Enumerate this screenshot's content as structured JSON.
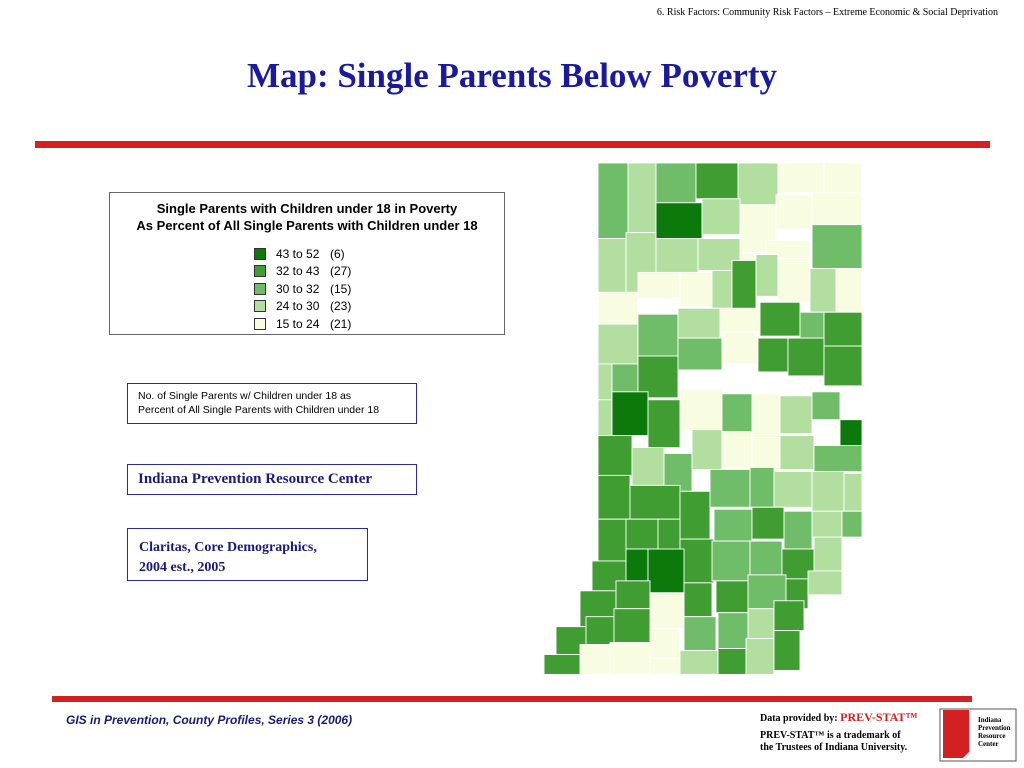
{
  "header_note": "6.  Risk Factors: Community Risk Factors – Extreme Economic & Social Deprivation",
  "title": "Map: Single Parents Below Poverty",
  "legend": {
    "title_line1": "Single Parents with Children  under 18 in Poverty",
    "title_line2": "As Percent of All Single Parents with Children under 18",
    "items": [
      {
        "range": "43 to 52",
        "count": "(6)",
        "color": "#0b7a0b"
      },
      {
        "range": "32 to 43",
        "count": "(27)",
        "color": "#3f9d32"
      },
      {
        "range": "30 to 32",
        "count": "(15)",
        "color": "#6fbd68"
      },
      {
        "range": "24 to 30",
        "count": "(23)",
        "color": "#b2dfa0"
      },
      {
        "range": "15 to 24",
        "count": "(21)",
        "color": "#f8fce0"
      }
    ]
  },
  "description": {
    "line1": "No. of Single Parents w/ Children under 18 as",
    "line2": "Percent of All Single Parents with Children under  18"
  },
  "center_name": "Indiana Prevention Resource Center",
  "source": {
    "line1": "Claritas, Core Demographics,",
    "line2": "2004 est., 2005"
  },
  "footer": {
    "series": "GIS in Prevention, County Profiles, Series 3 (2006)",
    "data_provided_by": "Data provided by:",
    "brand": "PREV-STAT™",
    "trademark_line1": "PREV-STAT™ is a trademark of",
    "trademark_line2": "the Trustees of Indiana University.",
    "logo_text": [
      "Indiana",
      "Prevention",
      "Resource",
      "Center"
    ]
  }
}
